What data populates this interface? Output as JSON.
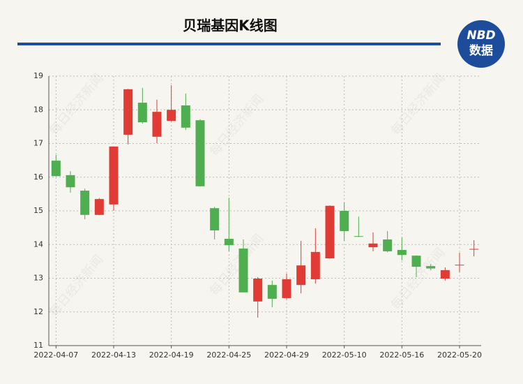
{
  "chart_data": {
    "type": "candlestick",
    "title": "贝瑞基因K线图",
    "logo": {
      "top": "NBD",
      "bottom": "数据"
    },
    "watermark": "每日经济新闻",
    "categories": [
      "2022-04-07",
      null,
      null,
      null,
      "2022-04-13",
      null,
      null,
      null,
      "2022-04-19",
      null,
      null,
      null,
      "2022-04-25",
      null,
      null,
      null,
      "2022-04-29",
      null,
      null,
      null,
      "2022-05-10",
      null,
      null,
      null,
      "2022-05-16",
      null,
      null,
      null,
      "2022-05-20",
      null
    ],
    "open": [
      16.49,
      16.06,
      15.6,
      14.88,
      15.19,
      17.26,
      18.21,
      17.2,
      17.67,
      18.13,
      17.69,
      15.08,
      14.17,
      13.88,
      12.31,
      12.8,
      12.41,
      12.8,
      12.97,
      13.59,
      15.0,
      14.25,
      13.92,
      14.15,
      13.84,
      13.67,
      13.36,
      12.99,
      13.38,
      13.85
    ],
    "high": [
      16.66,
      16.18,
      15.66,
      15.38,
      16.91,
      18.62,
      18.65,
      18.3,
      18.73,
      18.48,
      17.72,
      15.12,
      15.39,
      14.15,
      13.03,
      12.93,
      13.14,
      14.11,
      14.48,
      15.16,
      15.25,
      14.83,
      14.36,
      14.4,
      14.21,
      13.68,
      13.42,
      13.32,
      13.76,
      14.13
    ],
    "low": [
      16.02,
      15.54,
      14.75,
      14.87,
      15.0,
      16.97,
      17.59,
      17.01,
      17.65,
      17.4,
      15.72,
      14.15,
      13.8,
      12.58,
      11.83,
      12.14,
      12.37,
      12.55,
      12.84,
      13.58,
      14.11,
      14.22,
      13.8,
      13.77,
      13.53,
      13.03,
      13.24,
      12.93,
      13.18,
      13.65
    ],
    "close": [
      16.03,
      15.7,
      14.88,
      15.35,
      16.91,
      18.61,
      17.63,
      17.94,
      18.0,
      17.47,
      15.73,
      14.42,
      13.98,
      12.58,
      12.99,
      12.39,
      12.97,
      13.38,
      13.78,
      15.15,
      14.4,
      14.23,
      14.03,
      13.8,
      13.69,
      13.34,
      13.29,
      13.24,
      13.4,
      13.87
    ],
    "up_color": "#e03c35",
    "down_color": "#4fae4f",
    "ylim": [
      11,
      19
    ],
    "yticks": [
      11,
      12,
      13,
      14,
      15,
      16,
      17,
      18,
      19
    ],
    "grid": true
  }
}
